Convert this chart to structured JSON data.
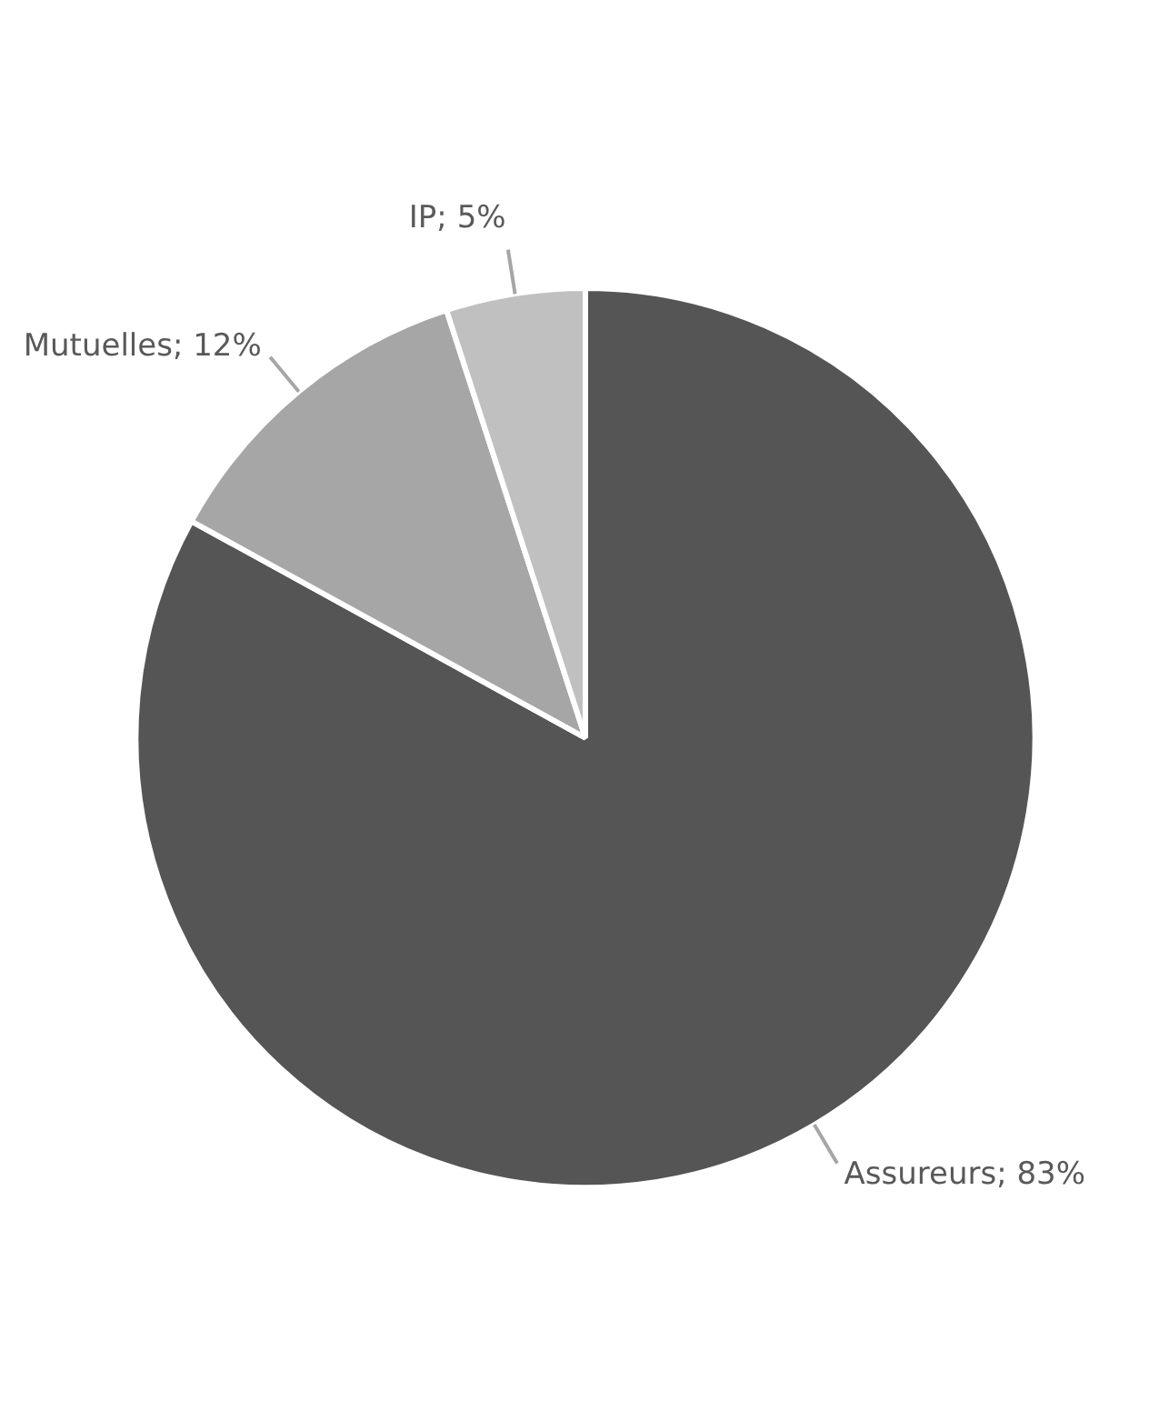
{
  "chart_data": {
    "type": "pie",
    "categories": [
      "Assureurs",
      "Mutuelles",
      "IP"
    ],
    "values": [
      83,
      12,
      5
    ],
    "colors": [
      "#555555",
      "#a6a6a6",
      "#c0c0c0"
    ],
    "value_labels": [
      "83%",
      "12%",
      "5%"
    ]
  }
}
